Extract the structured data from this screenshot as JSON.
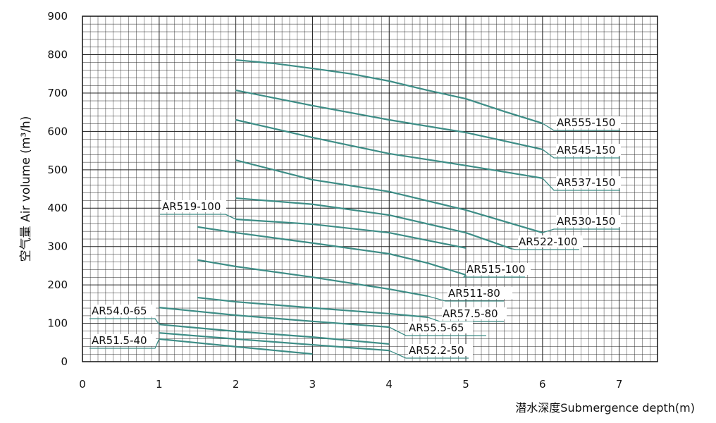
{
  "chart_data": {
    "type": "line",
    "y_label": "空气量 Air volume (m³/h)",
    "x_label": "潜水深度Submergence depth(m)",
    "xlim": [
      0,
      7.5
    ],
    "ylim": [
      0,
      900
    ],
    "xticks": [
      0,
      1,
      2,
      3,
      4,
      5,
      6,
      7
    ],
    "yticks": [
      0,
      100,
      200,
      300,
      400,
      500,
      600,
      700,
      800,
      900
    ],
    "grid": true,
    "series": [
      {
        "name": "AR555-150",
        "color": "#3d8d86",
        "x": [
          2,
          2.5,
          3,
          3.5,
          4,
          4.5,
          5,
          5.5,
          6
        ],
        "values": [
          786,
          777,
          764,
          750,
          731,
          707,
          685,
          652,
          621
        ]
      },
      {
        "name": "AR545-150",
        "color": "#3d8d86",
        "x": [
          2,
          3,
          4,
          5,
          6
        ],
        "values": [
          707,
          667,
          630,
          597,
          553
        ]
      },
      {
        "name": "AR537-150",
        "color": "#3d8d86",
        "x": [
          2,
          3,
          4,
          5,
          6
        ],
        "values": [
          630,
          584,
          542,
          511,
          478
        ]
      },
      {
        "name": "AR530-150",
        "color": "#3d8d86",
        "x": [
          2,
          3,
          4,
          5,
          6
        ],
        "values": [
          525,
          474,
          443,
          395,
          336
        ]
      },
      {
        "name": "AR522-100",
        "color": "#3d8d86",
        "x": [
          2,
          3,
          4,
          5,
          5.6
        ],
        "values": [
          426,
          410,
          382,
          336,
          294
        ]
      },
      {
        "name": "AR519-100",
        "color": "#3d8d86",
        "x": [
          2,
          3,
          4,
          5
        ],
        "values": [
          371,
          358,
          336,
          296
        ]
      },
      {
        "name": "AR515-100",
        "color": "#3d8d86",
        "x": [
          1.5,
          2,
          3,
          4,
          4.5,
          5
        ],
        "values": [
          351,
          336,
          309,
          281,
          257,
          226
        ]
      },
      {
        "name": "AR511-80",
        "color": "#3d8d86",
        "x": [
          1.5,
          2,
          3,
          4,
          4.5
        ],
        "values": [
          265,
          248,
          220,
          189,
          171
        ]
      },
      {
        "name": "AR57.5-80",
        "color": "#3d8d86",
        "x": [
          1.5,
          2,
          3,
          4,
          4.5
        ],
        "values": [
          167,
          156,
          140,
          125,
          116
        ]
      },
      {
        "name": "AR55.5-65",
        "color": "#3d8d86",
        "x": [
          1,
          2,
          3,
          4
        ],
        "values": [
          141,
          121,
          105,
          90
        ]
      },
      {
        "name": "AR54.0-65",
        "color": "#3d8d86",
        "x": [
          1,
          2,
          3,
          4
        ],
        "values": [
          97,
          79,
          64,
          46
        ]
      },
      {
        "name": "AR52.2-50",
        "color": "#3d8d86",
        "x": [
          1,
          2,
          3,
          4
        ],
        "values": [
          75,
          59,
          44,
          29
        ]
      },
      {
        "name": "AR51.5-40",
        "color": "#3d8d86",
        "x": [
          1,
          2,
          3
        ],
        "values": [
          59,
          39,
          20
        ]
      }
    ]
  }
}
